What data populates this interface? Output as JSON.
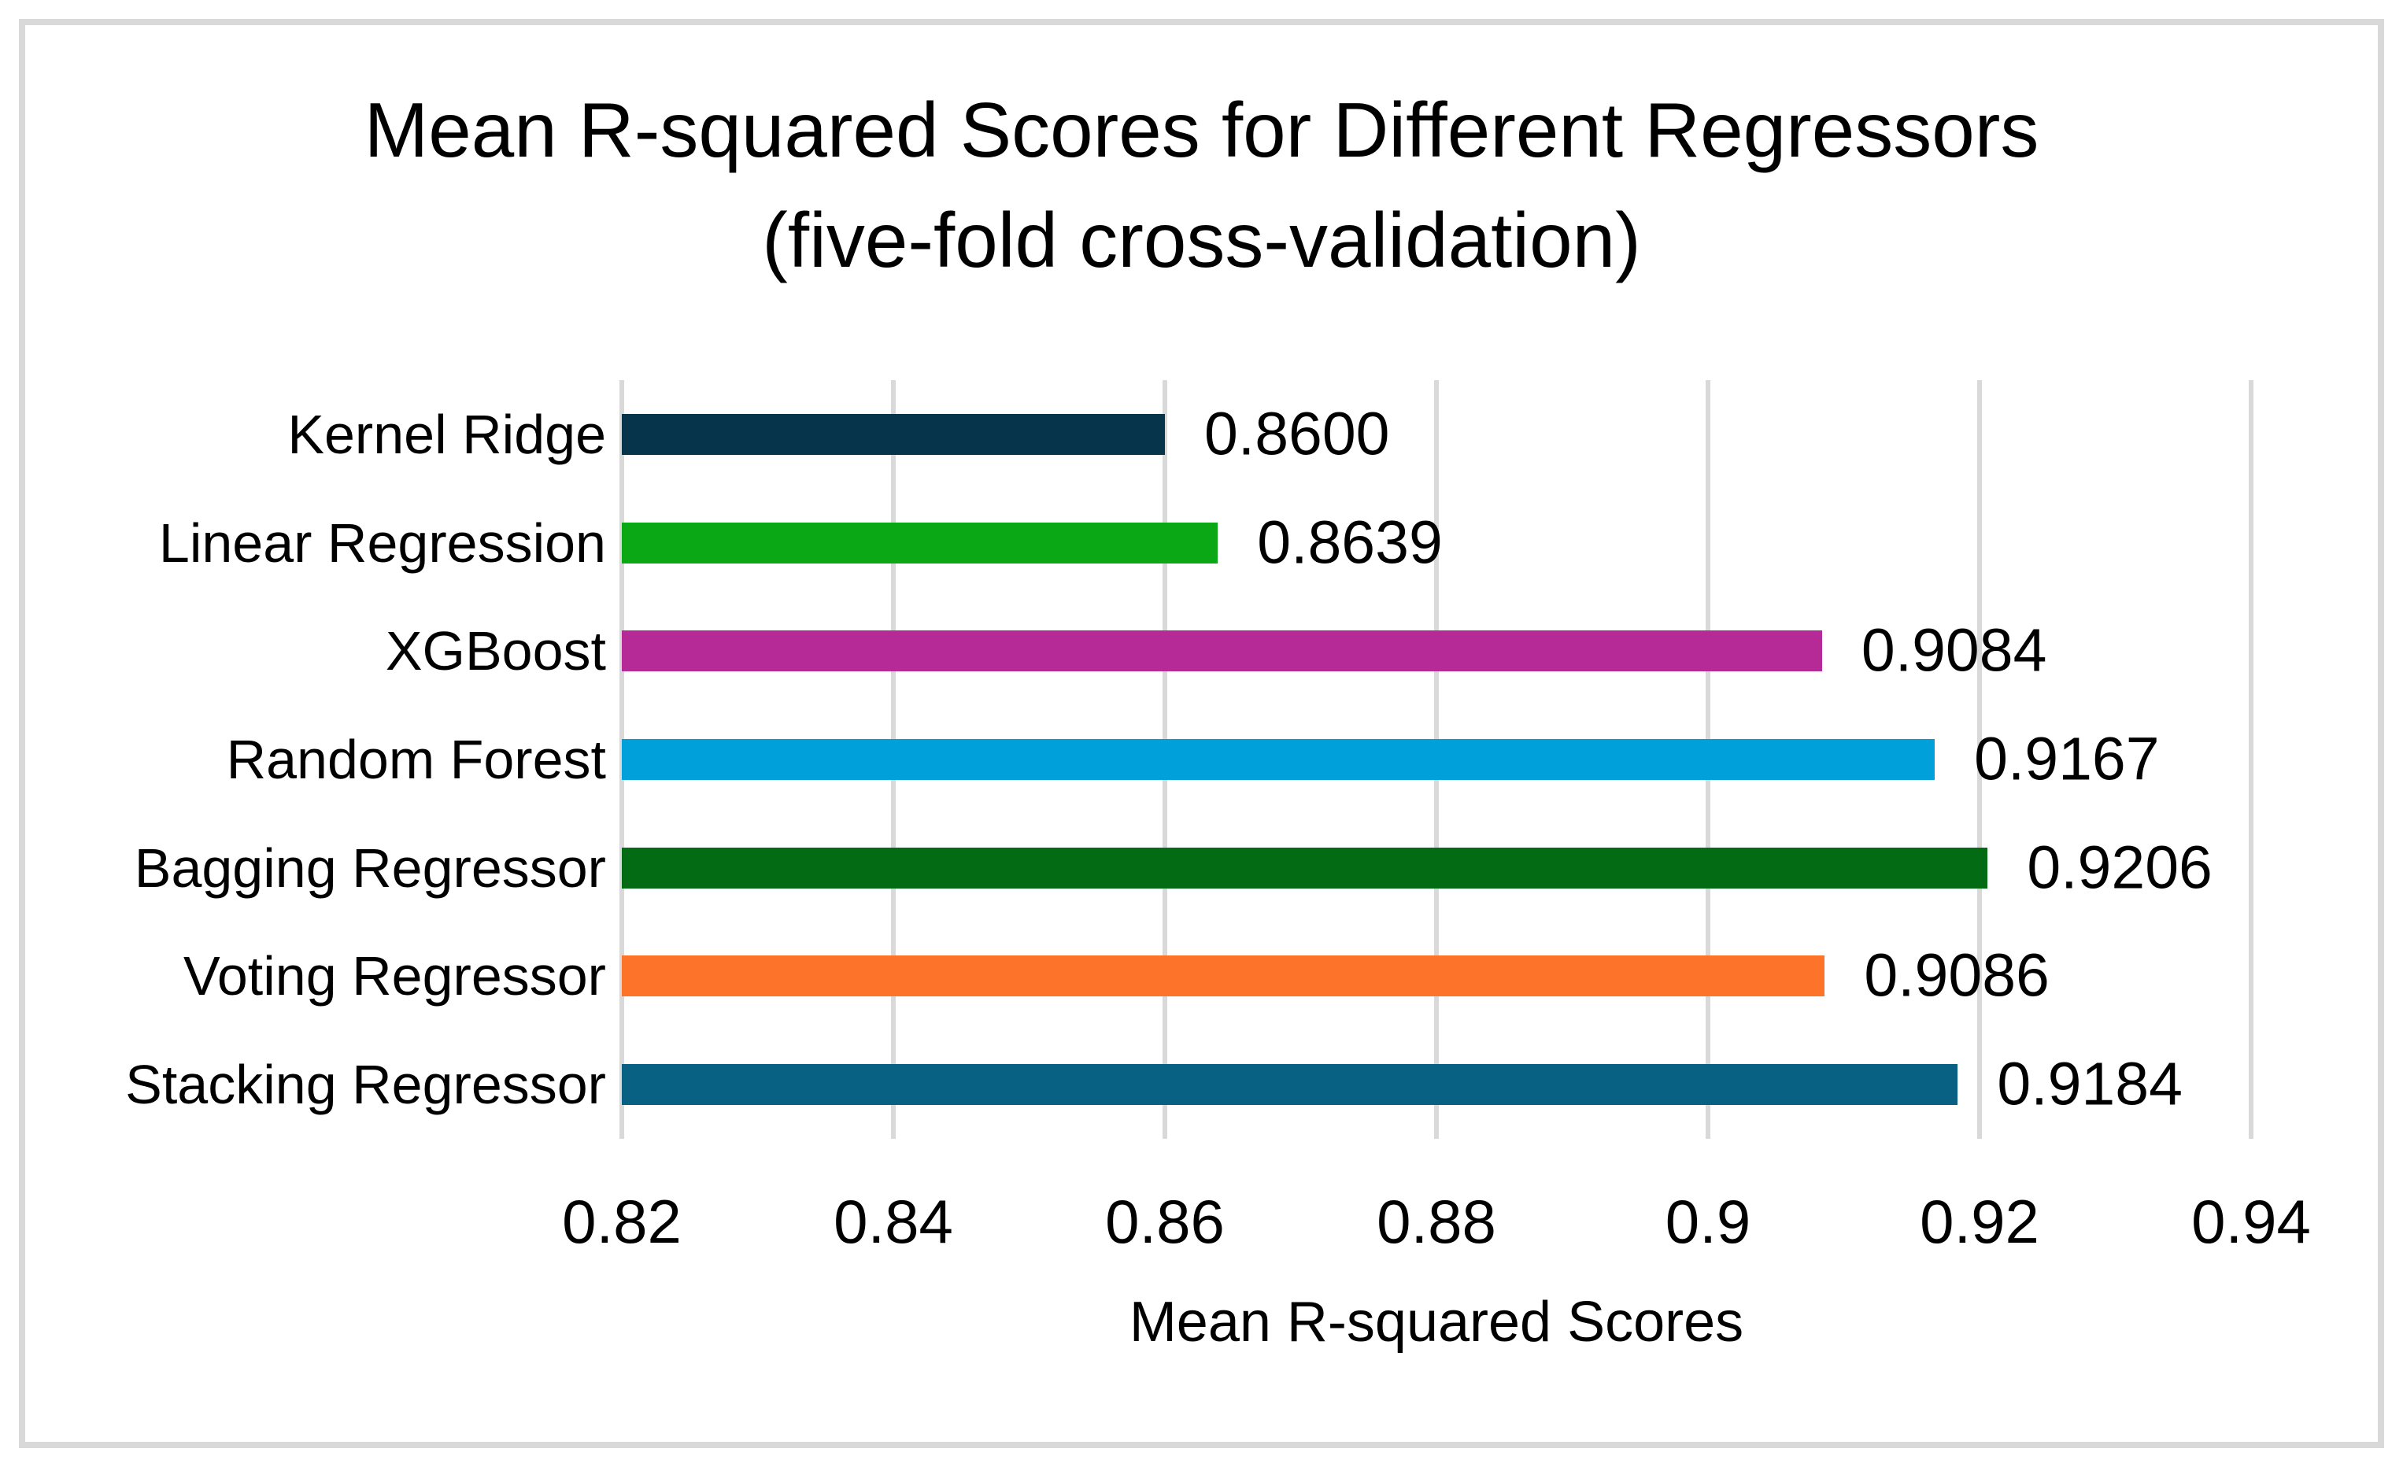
{
  "chart_data": {
    "type": "bar",
    "orientation": "horizontal",
    "title": "Mean R-squared Scores for Different Regressors",
    "subtitle": "(five-fold cross-validation)",
    "xlabel": "Mean R-squared Scores",
    "categories": [
      "Kernel Ridge",
      "Linear Regression",
      "XGBoost",
      "Random Forest",
      "Bagging Regressor",
      "Voting Regressor",
      "Stacking Regressor"
    ],
    "values": [
      0.86,
      0.8639,
      0.9084,
      0.9167,
      0.9206,
      0.9086,
      0.9184
    ],
    "value_labels": [
      "0.8600",
      "0.8639",
      "0.9084",
      "0.9167",
      "0.9206",
      "0.9086",
      "0.9184"
    ],
    "bar_colors": [
      "#05344b",
      "#0ba815",
      "#b52a96",
      "#00a0da",
      "#046b15",
      "#fd7329",
      "#086183"
    ],
    "xlim": [
      0.82,
      0.94
    ],
    "xticks": [
      0.82,
      0.84,
      0.86,
      0.88,
      0.9,
      0.92,
      0.94
    ],
    "xtick_labels": [
      "0.82",
      "0.84",
      "0.86",
      "0.88",
      "0.9",
      "0.92",
      "0.94"
    ],
    "grid": "vertical",
    "gridline_color": "#d9d9d9",
    "frame_border_color": "#d9d9d9",
    "background_color": "#ffffff",
    "text_color": "#000000",
    "legend": "none"
  }
}
